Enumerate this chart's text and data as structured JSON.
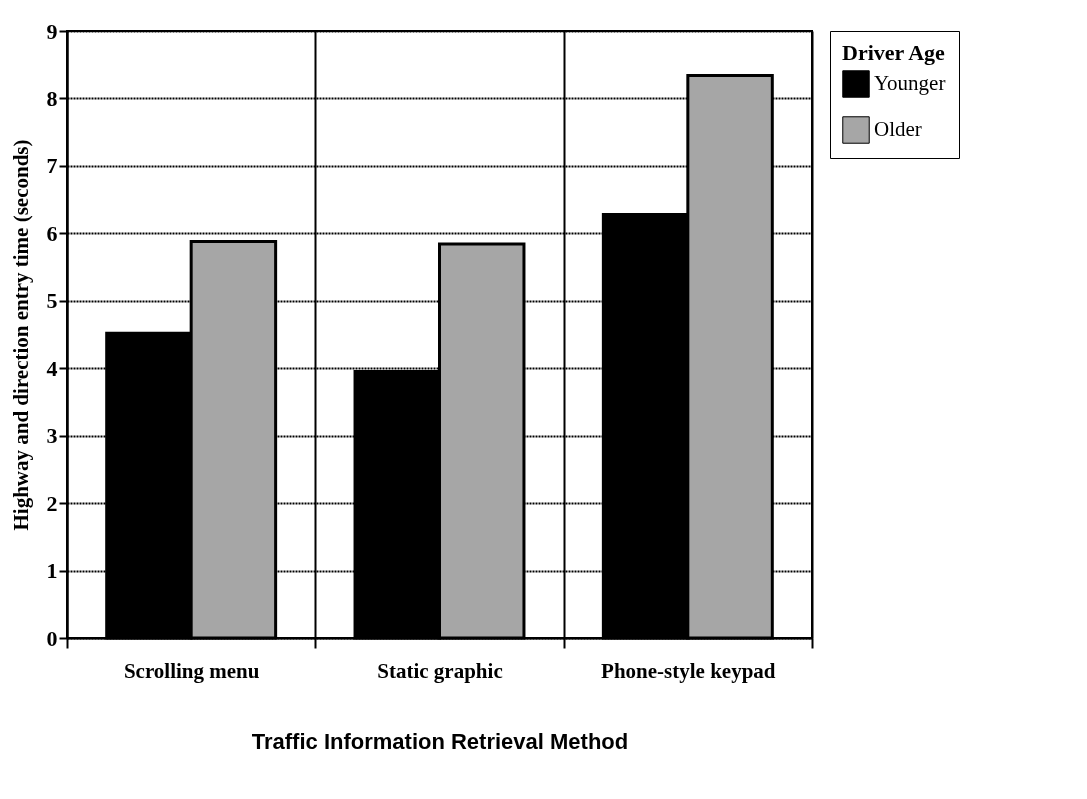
{
  "chart_data": {
    "type": "bar",
    "xlabel": "Traffic Information Retrieval Method",
    "ylabel": "Highway and direction entry time (seconds)",
    "legend_title": "Driver Age",
    "categories": [
      "Scrolling menu",
      "Static graphic",
      "Phone-style keypad"
    ],
    "series": [
      {
        "name": "Younger",
        "color": "#000000",
        "values": [
          4.52,
          3.95,
          6.28
        ]
      },
      {
        "name": "Older",
        "color": "#a6a6a6",
        "values": [
          5.88,
          5.84,
          8.34
        ]
      }
    ],
    "ylim": [
      0,
      9
    ],
    "yticks": [
      0,
      1,
      2,
      3,
      4,
      5,
      6,
      7,
      8,
      9
    ],
    "grid": true,
    "legend": "top right"
  }
}
